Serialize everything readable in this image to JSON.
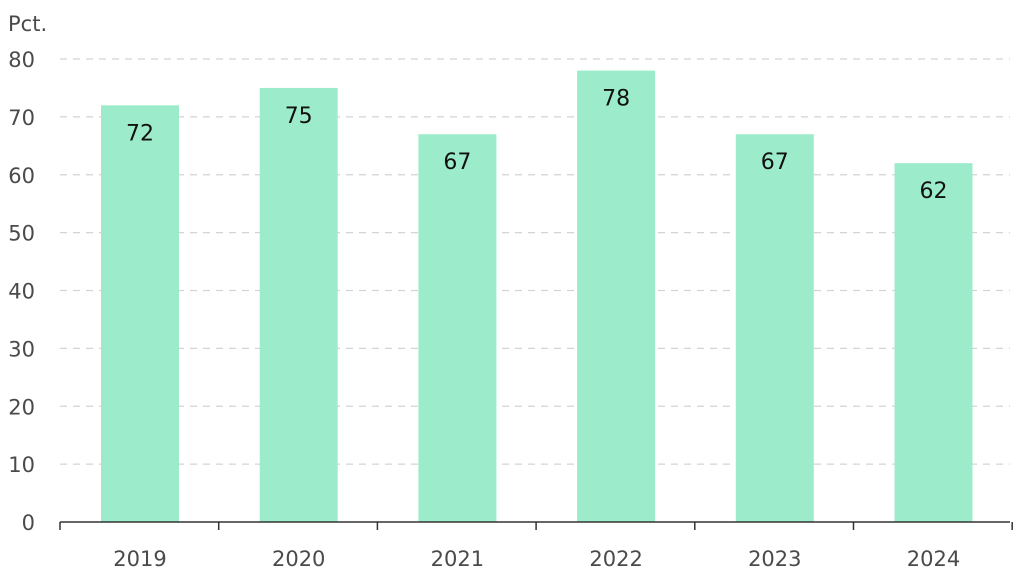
{
  "chart_data": {
    "type": "bar",
    "title": "",
    "xlabel": "",
    "ylabel": "",
    "unit_label": "Pct.",
    "categories": [
      "2019",
      "2020",
      "2021",
      "2022",
      "2023",
      "2024"
    ],
    "values": [
      72,
      75,
      67,
      78,
      67,
      62
    ],
    "data_labels": [
      "72",
      "75",
      "67",
      "78",
      "67",
      "62"
    ],
    "ylim": [
      0,
      80
    ],
    "y_ticks": [
      0,
      10,
      20,
      30,
      40,
      50,
      60,
      70,
      80
    ],
    "y_tick_labels": [
      "0",
      "10",
      "20",
      "30",
      "40",
      "50",
      "60",
      "70",
      "80"
    ],
    "grid": true,
    "legend": "none",
    "colors": {
      "bar": "#9ceccb",
      "grid": "#d4d4d4",
      "axis": "#333333",
      "tick_text": "#4a4a4a",
      "label_text": "#111111"
    }
  }
}
